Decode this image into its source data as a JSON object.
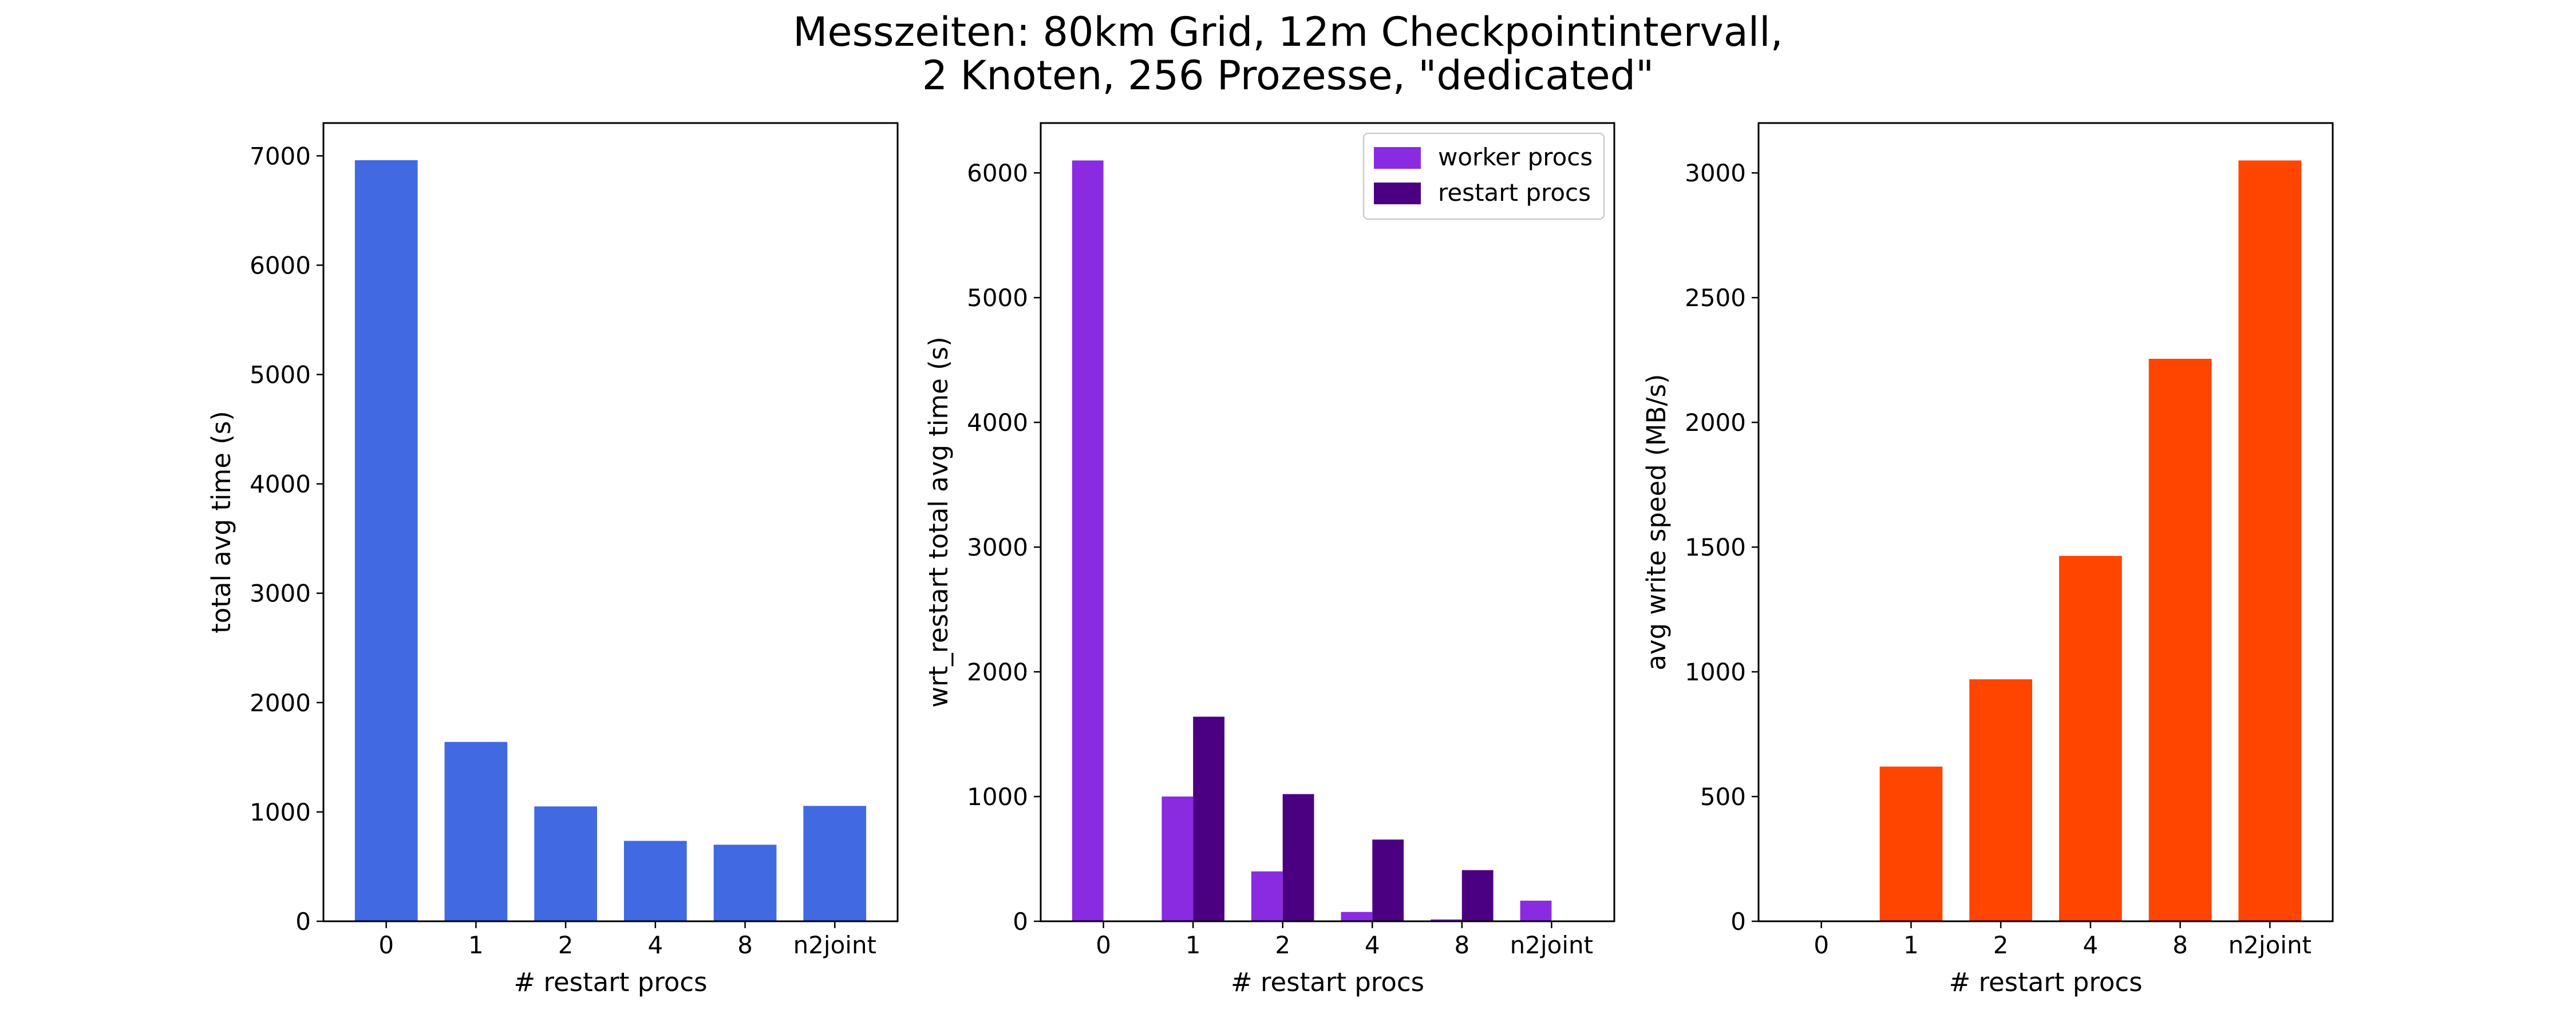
{
  "figure": {
    "title_line1": "Messzeiten: 80km Grid, 12m Checkpointintervall,",
    "title_line2": "2 Knoten, 256 Prozesse, \"dedicated\""
  },
  "chart_data": [
    {
      "type": "bar",
      "categories": [
        "0",
        "1",
        "2",
        "4",
        "8",
        "n2joint"
      ],
      "series": [
        {
          "values": [
            6960,
            1640,
            1050,
            735,
            700,
            1055
          ],
          "color": "#4169E1"
        }
      ],
      "xlabel": "# restart procs",
      "ylabel": "total avg time (s)",
      "ylim": [
        0,
        7300
      ],
      "yticks": [
        0,
        1000,
        2000,
        3000,
        4000,
        5000,
        6000,
        7000
      ],
      "grid": false
    },
    {
      "type": "bar",
      "categories": [
        "0",
        "1",
        "2",
        "4",
        "8",
        "n2joint"
      ],
      "series": [
        {
          "name": "worker procs",
          "values": [
            6100,
            1000,
            400,
            75,
            15,
            165
          ],
          "color": "#8A2BE2"
        },
        {
          "name": "restart procs",
          "values": [
            0,
            1640,
            1020,
            655,
            410,
            0
          ],
          "color": "#4B0082"
        }
      ],
      "xlabel": "# restart procs",
      "ylabel": "wrt_restart total avg time (s)",
      "ylim": [
        0,
        6400
      ],
      "yticks": [
        0,
        1000,
        2000,
        3000,
        4000,
        5000,
        6000
      ],
      "legend": "top-right",
      "grid": false
    },
    {
      "type": "bar",
      "categories": [
        "0",
        "1",
        "2",
        "4",
        "8",
        "n2joint"
      ],
      "series": [
        {
          "values": [
            0,
            620,
            970,
            1465,
            2255,
            3050
          ],
          "color": "#FF4500"
        }
      ],
      "xlabel": "# restart procs",
      "ylabel": "avg write speed (MB/s)",
      "ylim": [
        0,
        3200
      ],
      "yticks": [
        0,
        500,
        1000,
        1500,
        2000,
        2500,
        3000
      ],
      "grid": false
    }
  ]
}
